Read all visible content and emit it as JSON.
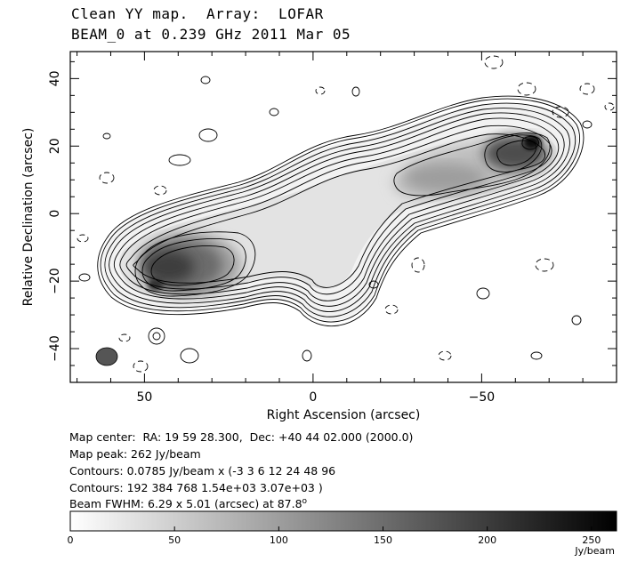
{
  "title_line1": "Clean YY map.  Array:  LOFAR",
  "title_line2": "BEAM_0 at 0.239 GHz 2011 Mar 05",
  "info": {
    "center": "Map center:  RA: 19 59 28.300,  Dec: +40 44 02.000 (2000.0)",
    "peak": "Map peak: 262 Jy/beam",
    "contours1": "Contours: 0.0785 Jy/beam x (-3 3 6 12 24 48 96",
    "contours2": "Contours: 192 384 768 1.54e+03 3.07e+03 )",
    "beam_prefix": "Beam FWHM: 6.29 x 5.01 (arcsec) at 87.8",
    "beam_deg": "o"
  },
  "chart_data": {
    "type": "heatmap",
    "xlabel": "Right Ascension  (arcsec)",
    "ylabel": "Relative Declination  (arcsec)",
    "xlim": [
      72,
      -90
    ],
    "ylim": [
      -50,
      48
    ],
    "x_ticks": [
      50,
      0,
      -50
    ],
    "x_tick_labels": [
      "50",
      "0",
      "−50"
    ],
    "y_ticks": [
      40,
      20,
      0,
      -20,
      -40
    ],
    "y_tick_labels": [
      "40",
      "20",
      "0",
      "−20",
      "−40"
    ],
    "map_peak_jy_per_beam": 262,
    "contour_base_jy_per_beam": 0.0785,
    "contour_multipliers": [
      -3,
      3,
      6,
      12,
      24,
      48,
      96,
      192,
      384,
      768,
      1540,
      3070
    ],
    "beam": {
      "major_arcsec": 6.29,
      "minor_arcsec": 5.01,
      "pa_deg": 87.8,
      "position": "bottom-left"
    },
    "components": [
      {
        "name": "east-lobe",
        "x": 38,
        "y": -15,
        "brightness": "high"
      },
      {
        "name": "east-hotspot",
        "x": 46,
        "y": -22,
        "brightness": "very high"
      },
      {
        "name": "west-lobe",
        "x": -45,
        "y": 12,
        "brightness": "medium"
      },
      {
        "name": "west-hotspot",
        "x": -66,
        "y": 22,
        "brightness": "peak"
      }
    ],
    "colorbar": {
      "min": 0,
      "max": 262,
      "ticks": [
        0,
        50,
        100,
        150,
        200,
        250
      ],
      "tick_labels": [
        "0",
        "50",
        "100",
        "150",
        "200",
        "250"
      ],
      "unit": "Jy/beam",
      "colormap": "grayscale-white-to-black"
    }
  }
}
